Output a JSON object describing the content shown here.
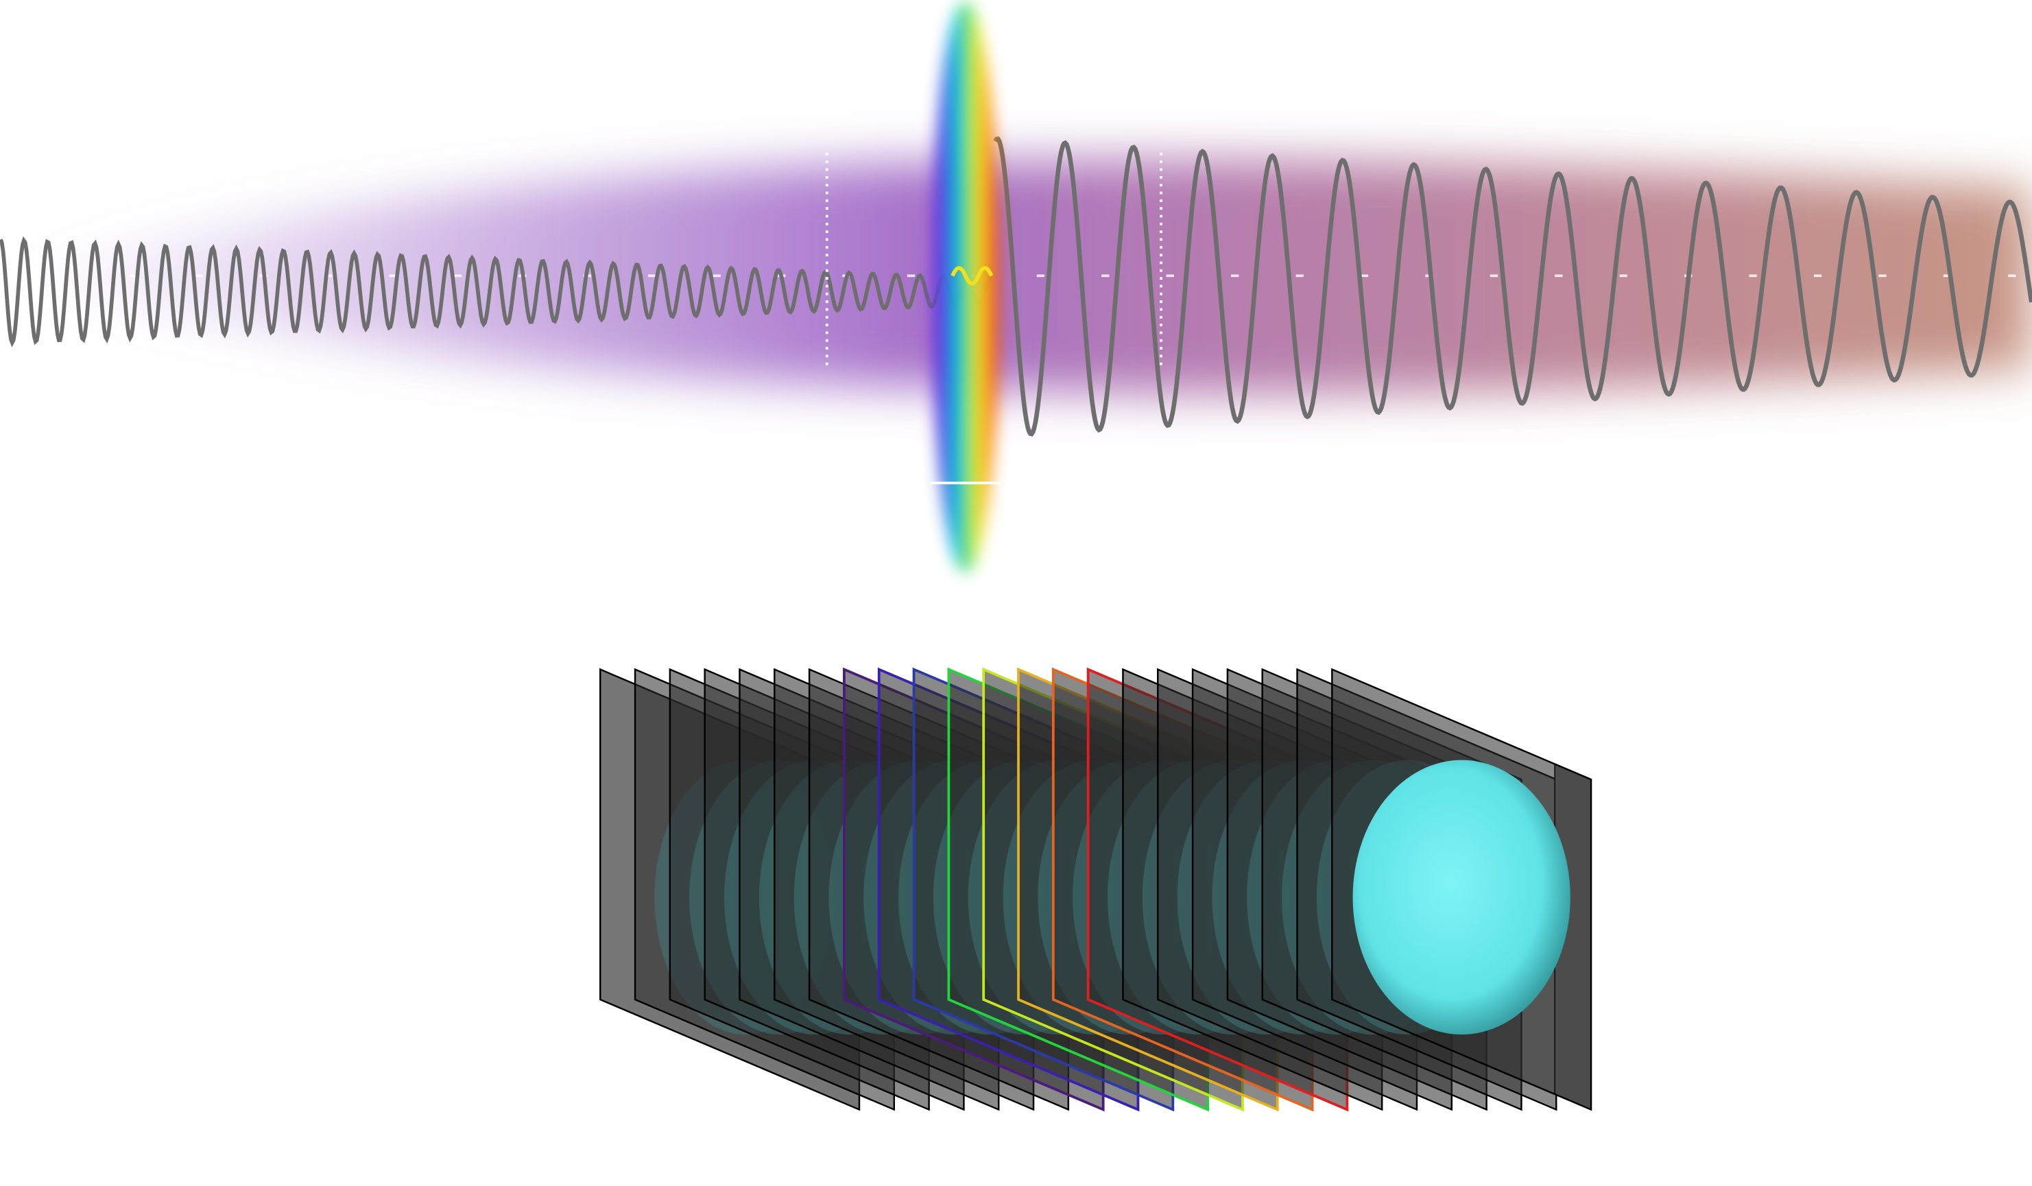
{
  "colors": {
    "background": "#ffffff",
    "wave": "#6e6e6e",
    "beam_left": "#9b5fc8",
    "beam_right": "#a8614f",
    "specimen": "#5fe6e8",
    "plate_fill": "#2a2a2a",
    "plate_edge": "#000000",
    "highlighted_plate_edges": [
      "#4b1a7a",
      "#3a1fb0",
      "#2a3aa8",
      "#22d63a",
      "#c8e61e",
      "#e6b01e",
      "#e6641e",
      "#e01e1e"
    ]
  },
  "icons": {
    "lens": "rainbow-lens-icon",
    "specimen": "cyan-specimen-icon"
  }
}
